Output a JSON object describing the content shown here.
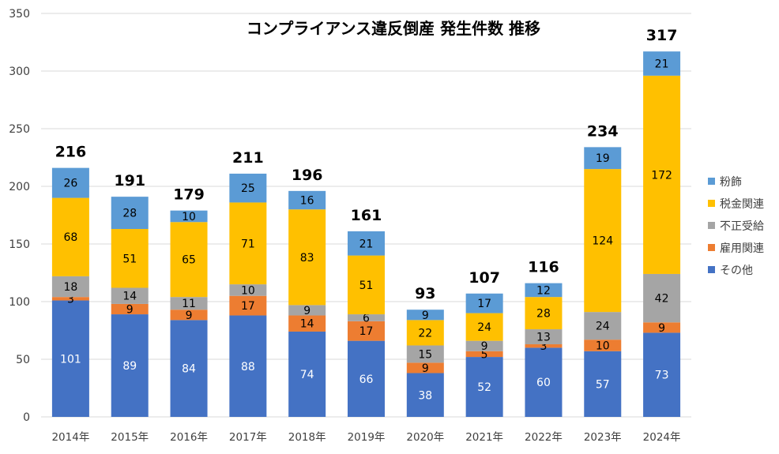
{
  "chart_data": {
    "type": "bar",
    "stacked": true,
    "title": "コンプライアンス違反倒産 発生件数 推移",
    "xlabel": "",
    "ylabel": "",
    "ylim": [
      0,
      350
    ],
    "yticks": [
      0,
      50,
      100,
      150,
      200,
      250,
      300,
      350
    ],
    "grid": true,
    "legend_position": "right",
    "categories": [
      "2014年",
      "2015年",
      "2016年",
      "2017年",
      "2018年",
      "2019年",
      "2020年",
      "2021年",
      "2022年",
      "2023年",
      "2024年"
    ],
    "series": [
      {
        "name": "その他",
        "color": "#4472C4",
        "label_color": "#ffffff",
        "values": [
          101,
          89,
          84,
          88,
          74,
          66,
          38,
          52,
          60,
          57,
          73
        ]
      },
      {
        "name": "雇用関連",
        "color": "#ED7D31",
        "label_color": "#000000",
        "values": [
          3,
          9,
          9,
          17,
          14,
          17,
          9,
          5,
          3,
          10,
          9
        ]
      },
      {
        "name": "不正受給",
        "color": "#A5A5A5",
        "label_color": "#000000",
        "values": [
          18,
          14,
          11,
          10,
          9,
          6,
          15,
          9,
          13,
          24,
          42
        ]
      },
      {
        "name": "税金関連",
        "color": "#FFC000",
        "label_color": "#000000",
        "values": [
          68,
          51,
          65,
          71,
          83,
          51,
          22,
          24,
          28,
          124,
          172
        ]
      },
      {
        "name": "粉飾",
        "color": "#5B9BD5",
        "label_color": "#000000",
        "values": [
          26,
          28,
          10,
          25,
          16,
          21,
          9,
          17,
          12,
          19,
          21
        ]
      }
    ],
    "totals": [
      216,
      191,
      179,
      211,
      196,
      161,
      93,
      107,
      116,
      234,
      317
    ],
    "legend_order": [
      "粉飾",
      "税金関連",
      "不正受給",
      "雇用関連",
      "その他"
    ]
  }
}
